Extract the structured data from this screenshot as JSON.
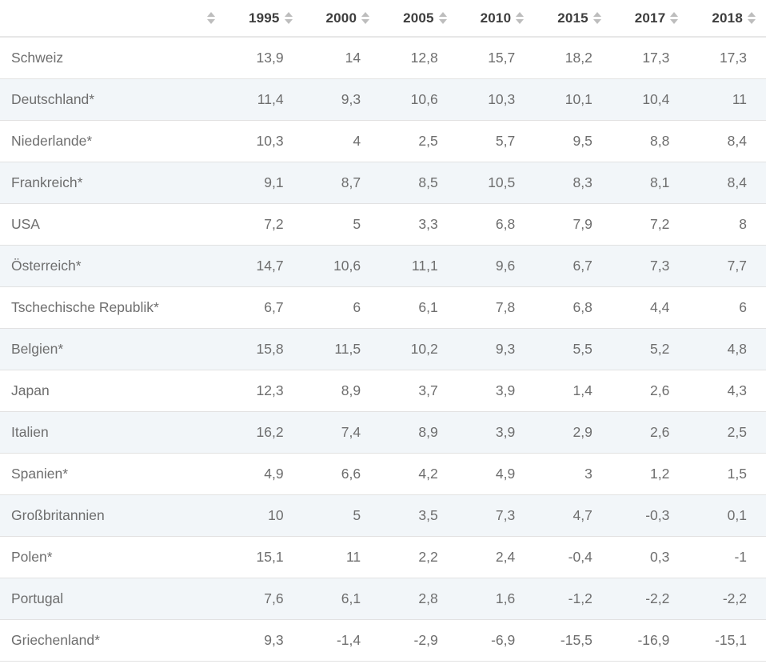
{
  "theme": {
    "stripe_bg": "#f2f6f9",
    "row_border": "#e2e2e2",
    "header_border": "#e7e7e7",
    "header_text": "#3d3d3d",
    "cell_text": "#6e6e6e",
    "sort_icon": "#bdbdbd"
  },
  "table": {
    "columns": [
      "",
      "1995",
      "2000",
      "2005",
      "2010",
      "2015",
      "2017",
      "2018"
    ],
    "rows": [
      {
        "label": "Schweiz",
        "values": [
          "13,9",
          "14",
          "12,8",
          "15,7",
          "18,2",
          "17,3",
          "17,3"
        ]
      },
      {
        "label": "Deutschland*",
        "values": [
          "11,4",
          "9,3",
          "10,6",
          "10,3",
          "10,1",
          "10,4",
          "11"
        ]
      },
      {
        "label": "Niederlande*",
        "values": [
          "10,3",
          "4",
          "2,5",
          "5,7",
          "9,5",
          "8,8",
          "8,4"
        ]
      },
      {
        "label": "Frankreich*",
        "values": [
          "9,1",
          "8,7",
          "8,5",
          "10,5",
          "8,3",
          "8,1",
          "8,4"
        ]
      },
      {
        "label": "USA",
        "values": [
          "7,2",
          "5",
          "3,3",
          "6,8",
          "7,9",
          "7,2",
          "8"
        ]
      },
      {
        "label": "Österreich*",
        "values": [
          "14,7",
          "10,6",
          "11,1",
          "9,6",
          "6,7",
          "7,3",
          "7,7"
        ]
      },
      {
        "label": "Tschechische Republik*",
        "values": [
          "6,7",
          "6",
          "6,1",
          "7,8",
          "6,8",
          "4,4",
          "6"
        ]
      },
      {
        "label": "Belgien*",
        "values": [
          "15,8",
          "11,5",
          "10,2",
          "9,3",
          "5,5",
          "5,2",
          "4,8"
        ]
      },
      {
        "label": "Japan",
        "values": [
          "12,3",
          "8,9",
          "3,7",
          "3,9",
          "1,4",
          "2,6",
          "4,3"
        ]
      },
      {
        "label": "Italien",
        "values": [
          "16,2",
          "7,4",
          "8,9",
          "3,9",
          "2,9",
          "2,6",
          "2,5"
        ]
      },
      {
        "label": "Spanien*",
        "values": [
          "4,9",
          "6,6",
          "4,2",
          "4,9",
          "3",
          "1,2",
          "1,5"
        ]
      },
      {
        "label": "Großbritannien",
        "values": [
          "10",
          "5",
          "3,5",
          "7,3",
          "4,7",
          "-0,3",
          "0,1"
        ]
      },
      {
        "label": "Polen*",
        "values": [
          "15,1",
          "11",
          "2,2",
          "2,4",
          "-0,4",
          "0,3",
          "-1"
        ]
      },
      {
        "label": "Portugal",
        "values": [
          "7,6",
          "6,1",
          "2,8",
          "1,6",
          "-1,2",
          "-2,2",
          "-2,2"
        ]
      },
      {
        "label": "Griechenland*",
        "values": [
          "9,3",
          "-1,4",
          "-2,9",
          "-6,9",
          "-15,5",
          "-16,9",
          "-15,1"
        ]
      }
    ]
  },
  "chart_data": {
    "type": "table",
    "categories": [
      "1995",
      "2000",
      "2005",
      "2010",
      "2015",
      "2017",
      "2018"
    ],
    "series": [
      {
        "name": "Schweiz",
        "values": [
          13.9,
          14,
          12.8,
          15.7,
          18.2,
          17.3,
          17.3
        ]
      },
      {
        "name": "Deutschland*",
        "values": [
          11.4,
          9.3,
          10.6,
          10.3,
          10.1,
          10.4,
          11
        ]
      },
      {
        "name": "Niederlande*",
        "values": [
          10.3,
          4,
          2.5,
          5.7,
          9.5,
          8.8,
          8.4
        ]
      },
      {
        "name": "Frankreich*",
        "values": [
          9.1,
          8.7,
          8.5,
          10.5,
          8.3,
          8.1,
          8.4
        ]
      },
      {
        "name": "USA",
        "values": [
          7.2,
          5,
          3.3,
          6.8,
          7.9,
          7.2,
          8
        ]
      },
      {
        "name": "Österreich*",
        "values": [
          14.7,
          10.6,
          11.1,
          9.6,
          6.7,
          7.3,
          7.7
        ]
      },
      {
        "name": "Tschechische Republik*",
        "values": [
          6.7,
          6,
          6.1,
          7.8,
          6.8,
          4.4,
          6
        ]
      },
      {
        "name": "Belgien*",
        "values": [
          15.8,
          11.5,
          10.2,
          9.3,
          5.5,
          5.2,
          4.8
        ]
      },
      {
        "name": "Japan",
        "values": [
          12.3,
          8.9,
          3.7,
          3.9,
          1.4,
          2.6,
          4.3
        ]
      },
      {
        "name": "Italien",
        "values": [
          16.2,
          7.4,
          8.9,
          3.9,
          2.9,
          2.6,
          2.5
        ]
      },
      {
        "name": "Spanien*",
        "values": [
          4.9,
          6.6,
          4.2,
          4.9,
          3,
          1.2,
          1.5
        ]
      },
      {
        "name": "Großbritannien",
        "values": [
          10,
          5,
          3.5,
          7.3,
          4.7,
          -0.3,
          0.1
        ]
      },
      {
        "name": "Polen*",
        "values": [
          15.1,
          11,
          2.2,
          2.4,
          -0.4,
          0.3,
          -1
        ]
      },
      {
        "name": "Portugal",
        "values": [
          7.6,
          6.1,
          2.8,
          1.6,
          -1.2,
          -2.2,
          -2.2
        ]
      },
      {
        "name": "Griechenland*",
        "values": [
          9.3,
          -1.4,
          -2.9,
          -6.9,
          -15.5,
          -16.9,
          -15.1
        ]
      }
    ],
    "title": "",
    "xlabel": "",
    "ylabel": "",
    "layout_hints": {
      "striped_rows": true,
      "sortable_columns": true,
      "number_format": "de-DE decimal comma",
      "first_column": "country names, some marked with asterisk"
    }
  }
}
